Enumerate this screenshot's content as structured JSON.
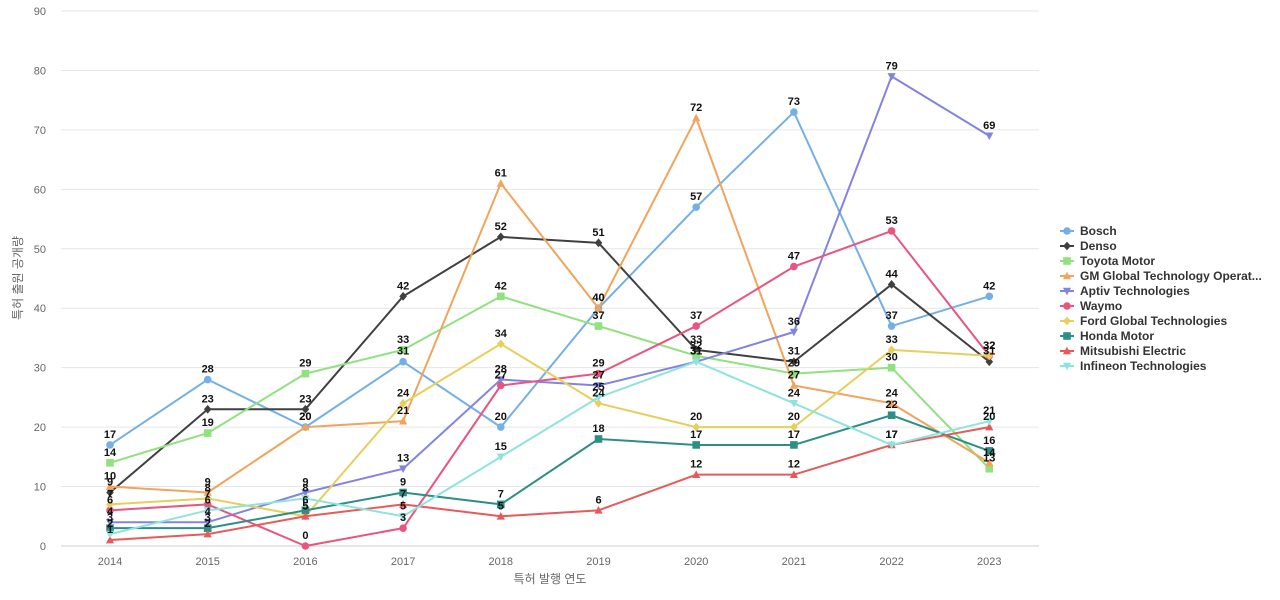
{
  "chart_data": {
    "type": "line",
    "title": "",
    "xlabel": "특허 발행 연도",
    "ylabel": "특허 출원 공개량",
    "x": [
      "2014",
      "2015",
      "2016",
      "2017",
      "2018",
      "2019",
      "2020",
      "2021",
      "2022",
      "2023"
    ],
    "y_ticks": [
      "0",
      "10",
      "20",
      "30",
      "40",
      "50",
      "60",
      "70",
      "80",
      "90"
    ],
    "ylim": [
      0,
      90
    ],
    "grid": true,
    "legend_position": "right",
    "series": [
      {
        "name": "Bosch",
        "color": "#74b0e6",
        "marker": "circle",
        "values": [
          17,
          28,
          20,
          31,
          20,
          40,
          57,
          73,
          37,
          42
        ]
      },
      {
        "name": "Denso",
        "color": "#404040",
        "marker": "diamond",
        "values": [
          9,
          23,
          23,
          42,
          52,
          51,
          33,
          31,
          44,
          31
        ]
      },
      {
        "name": "Toyota Motor",
        "color": "#8fe27e",
        "marker": "square",
        "values": [
          14,
          19,
          29,
          33,
          42,
          37,
          32,
          29,
          30,
          13
        ]
      },
      {
        "name": "GM Global Technology Operat...",
        "color": "#f1a45c",
        "marker": "triangle-up",
        "values": [
          10,
          9,
          20,
          21,
          61,
          40,
          72,
          27,
          24,
          14
        ]
      },
      {
        "name": "Aptiv Technologies",
        "color": "#8384e0",
        "marker": "triangle-down",
        "values": [
          4,
          4,
          9,
          13,
          28,
          27,
          31,
          36,
          79,
          69
        ]
      },
      {
        "name": "Waymo",
        "color": "#e8557f",
        "marker": "circle",
        "values": [
          6,
          7,
          0,
          3,
          27,
          29,
          37,
          47,
          53,
          32
        ]
      },
      {
        "name": "Ford Global Technologies",
        "color": "#e6cf5a",
        "marker": "diamond",
        "values": [
          7,
          8,
          5,
          24,
          34,
          24,
          20,
          20,
          33,
          32
        ]
      },
      {
        "name": "Honda Motor",
        "color": "#2b8f86",
        "marker": "square",
        "values": [
          3,
          3,
          6,
          9,
          7,
          18,
          17,
          17,
          22,
          16
        ]
      },
      {
        "name": "Mitsubishi Electric",
        "color": "#e85a5a",
        "marker": "triangle-up",
        "values": [
          1,
          2,
          5,
          7,
          5,
          6,
          12,
          12,
          17,
          20
        ]
      },
      {
        "name": "Infineon Technologies",
        "color": "#8fe3df",
        "marker": "triangle-down",
        "values": [
          2,
          6,
          8,
          5,
          15,
          25,
          31,
          24,
          17,
          21
        ]
      }
    ]
  }
}
